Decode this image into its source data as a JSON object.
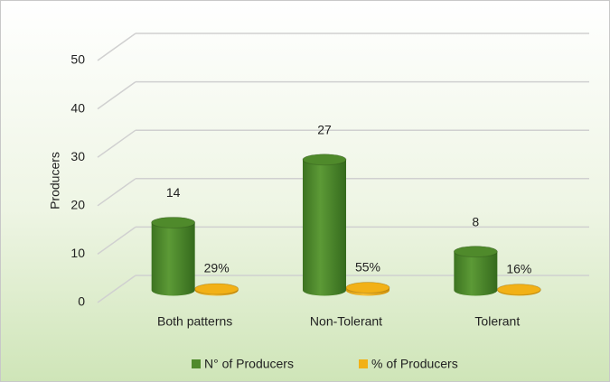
{
  "chart_data": {
    "type": "bar3d",
    "categories": [
      "Both patterns",
      "Non-Tolerant",
      "Tolerant"
    ],
    "series": [
      {
        "name": "N° of Producers",
        "color": "#4f8a2b",
        "values": [
          14,
          27,
          8
        ]
      },
      {
        "name": "% of Producers",
        "color": "#f2b116",
        "values": [
          0.29,
          0.55,
          0.16
        ],
        "value_labels": [
          "29%",
          "55%",
          "16%"
        ]
      }
    ],
    "ylabel": "Producers",
    "ylim": [
      0,
      50
    ],
    "yticks": [
      0,
      10,
      20,
      30,
      40,
      50
    ],
    "grid": true,
    "legend": "bottom"
  }
}
